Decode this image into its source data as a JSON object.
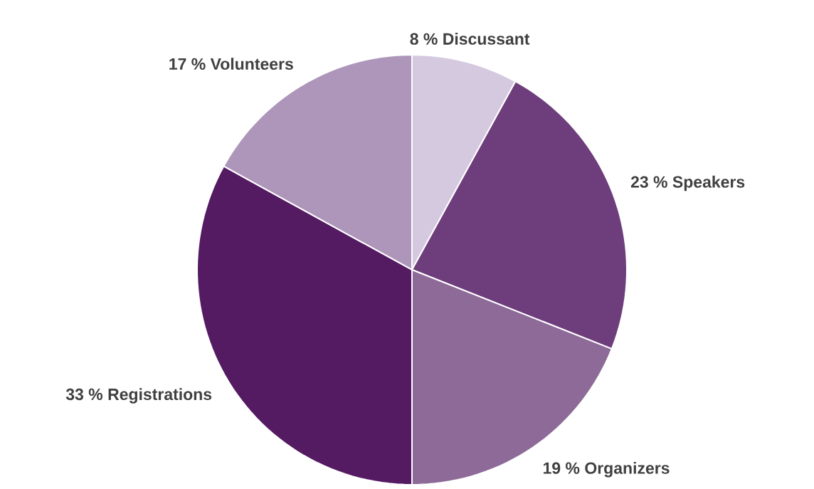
{
  "chart_data": {
    "type": "pie",
    "categories": [
      "Discussant",
      "Speakers",
      "Organizers",
      "Registrations",
      "Volunteers"
    ],
    "values": [
      8,
      23,
      19,
      33,
      17
    ],
    "value_labels": [
      "8 %",
      "23 %",
      "19 %",
      "33 %",
      "17 %"
    ],
    "colors": [
      "#d5c9df",
      "#6e3d7c",
      "#8d6a98",
      "#541a62",
      "#ae96ba"
    ]
  }
}
